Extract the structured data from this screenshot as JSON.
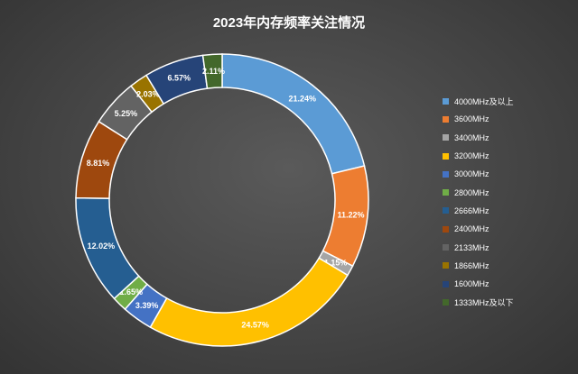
{
  "chart_data": {
    "type": "pie",
    "variant": "donut",
    "title": "2023年内存频率关注情况",
    "legend_position": "right",
    "series": [
      {
        "name": "4000MHz及以上",
        "value": 21.24,
        "label": "21.24%",
        "color": "#5B9BD5"
      },
      {
        "name": "3600MHz",
        "value": 11.22,
        "label": "11.22%",
        "color": "#ED7D31"
      },
      {
        "name": "3400MHz",
        "value": 1.15,
        "label": "1.15%",
        "color": "#A5A5A5"
      },
      {
        "name": "3200MHz",
        "value": 24.57,
        "label": "24.57%",
        "color": "#FFC000"
      },
      {
        "name": "3000MHz",
        "value": 3.39,
        "label": "3.39%",
        "color": "#4472C4"
      },
      {
        "name": "2800MHz",
        "value": 1.65,
        "label": "1.65%",
        "color": "#70AD47"
      },
      {
        "name": "2666MHz",
        "value": 12.02,
        "label": "12.02%",
        "color": "#255E91"
      },
      {
        "name": "2400MHz",
        "value": 8.81,
        "label": "8.81%",
        "color": "#9E480E"
      },
      {
        "name": "2133MHz",
        "value": 5.25,
        "label": "5.25%",
        "color": "#636363"
      },
      {
        "name": "1866MHz",
        "value": 2.03,
        "label": "2.03%",
        "color": "#997300"
      },
      {
        "name": "1600MHz",
        "value": 6.57,
        "label": "6.57%",
        "color": "#264478"
      },
      {
        "name": "1333MHz及以下",
        "value": 2.11,
        "label": "2.11%",
        "color": "#43682B"
      }
    ]
  }
}
